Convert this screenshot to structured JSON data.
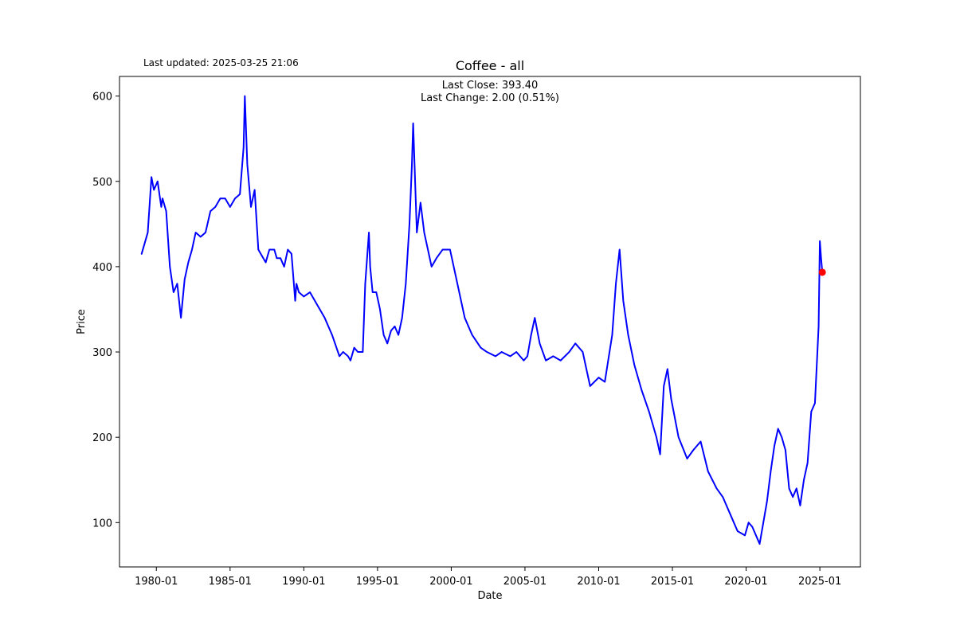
{
  "header": {
    "last_updated": "Last updated: 2025-03-25 21:06"
  },
  "chart_data": {
    "type": "line",
    "title": "Coffee - all",
    "xlabel": "Date",
    "ylabel": "Price",
    "grid": false,
    "x_ticks": [
      "1980-01",
      "1985-01",
      "1990-01",
      "1995-01",
      "2000-01",
      "2005-01",
      "2010-01",
      "2015-01",
      "2020-01",
      "2025-01"
    ],
    "y_ticks": [
      100,
      200,
      300,
      400,
      500,
      600
    ],
    "xlim": [
      "1977-07",
      "2027-10"
    ],
    "ylim": [
      48,
      623
    ],
    "annotations": {
      "last_close": "Last Close: 393.40",
      "last_change": "Last Change: 2.00 (0.51%)"
    },
    "series": [
      {
        "color": "#0000ff",
        "x": [
          "1979-01",
          "1979-06",
          "1979-09",
          "1979-11",
          "1980-02",
          "1980-05",
          "1980-06",
          "1980-09",
          "1980-12",
          "1981-03",
          "1981-06",
          "1981-09",
          "1981-12",
          "1982-03",
          "1982-06",
          "1982-09",
          "1983-01",
          "1983-05",
          "1983-09",
          "1984-01",
          "1984-05",
          "1984-09",
          "1985-01",
          "1985-05",
          "1985-09",
          "1985-12",
          "1986-01",
          "1986-02",
          "1986-03",
          "1986-06",
          "1986-09",
          "1986-12",
          "1987-02",
          "1987-06",
          "1987-09",
          "1988-01",
          "1988-03",
          "1988-06",
          "1988-09",
          "1988-12",
          "1989-03",
          "1989-06",
          "1989-07",
          "1989-09",
          "1990-01",
          "1990-06",
          "1990-12",
          "1991-06",
          "1991-12",
          "1992-06",
          "1992-09",
          "1993-01",
          "1993-03",
          "1993-06",
          "1993-09",
          "1994-01",
          "1994-03",
          "1994-06",
          "1994-07",
          "1994-09",
          "1994-12",
          "1995-03",
          "1995-06",
          "1995-09",
          "1995-12",
          "1996-03",
          "1996-06",
          "1996-09",
          "1996-12",
          "1997-03",
          "1997-05",
          "1997-06",
          "1997-09",
          "1997-12",
          "1998-03",
          "1998-06",
          "1998-09",
          "1999-01",
          "1999-06",
          "1999-12",
          "2000-06",
          "2000-12",
          "2001-06",
          "2002-01",
          "2002-06",
          "2003-01",
          "2003-06",
          "2004-01",
          "2004-06",
          "2004-12",
          "2005-03",
          "2005-06",
          "2005-09",
          "2006-01",
          "2006-06",
          "2006-12",
          "2007-06",
          "2008-01",
          "2008-06",
          "2008-12",
          "2009-06",
          "2010-01",
          "2010-06",
          "2010-12",
          "2011-03",
          "2011-06",
          "2011-09",
          "2012-01",
          "2012-06",
          "2012-12",
          "2013-06",
          "2013-12",
          "2014-03",
          "2014-06",
          "2014-09",
          "2014-12",
          "2015-06",
          "2016-01",
          "2016-06",
          "2016-12",
          "2017-06",
          "2018-01",
          "2018-06",
          "2018-12",
          "2019-06",
          "2019-12",
          "2020-03",
          "2020-06",
          "2020-12",
          "2021-03",
          "2021-06",
          "2021-09",
          "2021-12",
          "2022-03",
          "2022-06",
          "2022-09",
          "2022-12",
          "2023-03",
          "2023-06",
          "2023-09",
          "2023-12",
          "2024-03",
          "2024-06",
          "2024-09",
          "2024-12",
          "2025-01",
          "2025-02",
          "2025-03"
        ],
        "y": [
          415,
          440,
          505,
          490,
          500,
          470,
          480,
          465,
          400,
          370,
          380,
          340,
          385,
          405,
          420,
          440,
          435,
          440,
          465,
          470,
          480,
          480,
          470,
          480,
          485,
          540,
          600,
          560,
          520,
          470,
          490,
          420,
          415,
          405,
          420,
          420,
          410,
          410,
          400,
          420,
          415,
          360,
          380,
          370,
          365,
          370,
          355,
          340,
          320,
          295,
          300,
          295,
          290,
          305,
          300,
          300,
          380,
          440,
          400,
          370,
          370,
          350,
          320,
          310,
          325,
          330,
          320,
          340,
          380,
          450,
          520,
          568,
          440,
          475,
          440,
          420,
          400,
          410,
          420,
          420,
          380,
          340,
          320,
          305,
          300,
          295,
          300,
          295,
          300,
          290,
          295,
          320,
          340,
          310,
          290,
          295,
          290,
          300,
          310,
          300,
          260,
          270,
          265,
          320,
          380,
          420,
          360,
          320,
          285,
          255,
          230,
          200,
          180,
          260,
          280,
          245,
          200,
          175,
          185,
          195,
          160,
          140,
          130,
          110,
          90,
          85,
          100,
          95,
          75,
          100,
          125,
          160,
          190,
          210,
          200,
          185,
          140,
          130,
          140,
          120,
          150,
          170,
          230,
          240,
          330,
          430,
          410,
          393.4
        ]
      }
    ],
    "last_point": {
      "x": "2025-03",
      "y": 393.4,
      "color": "#ff0000"
    }
  }
}
